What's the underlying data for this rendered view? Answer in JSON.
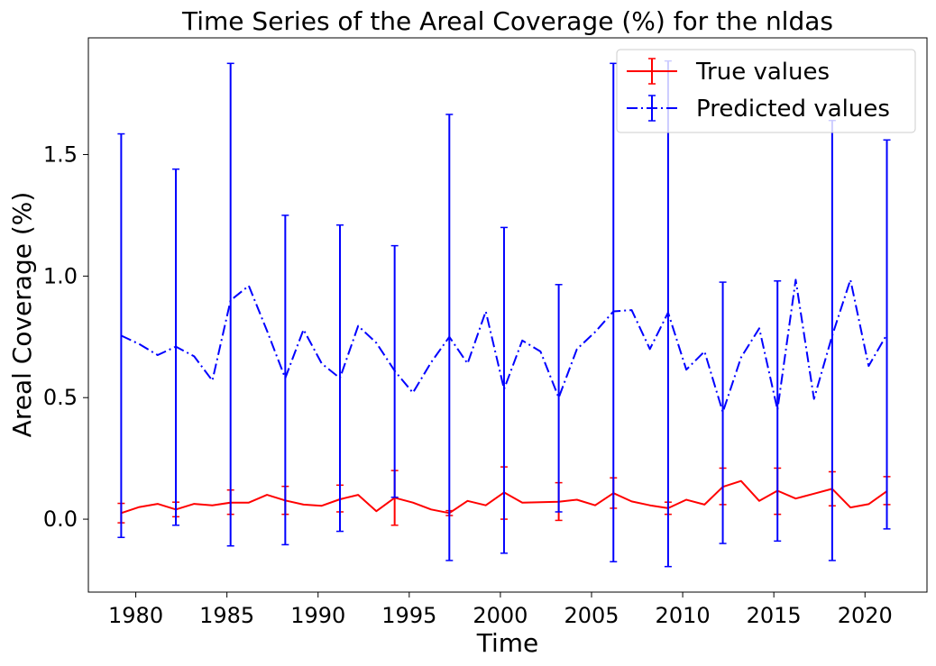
{
  "chart_data": {
    "type": "line",
    "title": "Time Series of the Areal Coverage (%) for the nldas",
    "xlabel": "Time",
    "ylabel": "Areal Coverage (%)",
    "xlim": [
      1977.4,
      2023.4
    ],
    "ylim": [
      -0.3,
      1.98
    ],
    "xticks": [
      1980,
      1985,
      1990,
      1995,
      2000,
      2005,
      2010,
      2015,
      2020
    ],
    "xtick_labels": [
      "1980",
      "1985",
      "1990",
      "1995",
      "2000",
      "2005",
      "2010",
      "2015",
      "2020"
    ],
    "yticks": [
      0.0,
      0.5,
      1.0,
      1.5
    ],
    "ytick_labels": [
      "0.0",
      "0.5",
      "1.0",
      "1.5"
    ],
    "grid": false,
    "legend_position": "top-right",
    "series": [
      {
        "name": "True values",
        "color": "#ff0000",
        "linestyle": "solid",
        "x": [
          1979.2,
          1980.2,
          1981.2,
          1982.2,
          1983.2,
          1984.2,
          1985.2,
          1986.2,
          1987.2,
          1988.2,
          1989.2,
          1990.2,
          1991.2,
          1992.2,
          1993.2,
          1994.2,
          1995.2,
          1996.2,
          1997.2,
          1998.2,
          1999.2,
          2000.2,
          2001.2,
          2002.2,
          2003.2,
          2004.2,
          2005.2,
          2006.2,
          2007.2,
          2008.2,
          2009.2,
          2010.2,
          2011.2,
          2012.2,
          2013.2,
          2014.2,
          2015.2,
          2016.2,
          2017.2,
          2018.2,
          2019.2,
          2020.2,
          2021.2
        ],
        "y": [
          0.025,
          0.05,
          0.063,
          0.04,
          0.063,
          0.057,
          0.068,
          0.068,
          0.1,
          0.077,
          0.06,
          0.055,
          0.082,
          0.1,
          0.033,
          0.088,
          0.068,
          0.04,
          0.025,
          0.075,
          0.057,
          0.11,
          0.068,
          0.07,
          0.072,
          0.08,
          0.057,
          0.107,
          0.073,
          0.057,
          0.045,
          0.08,
          0.06,
          0.133,
          0.157,
          0.075,
          0.117,
          0.085,
          0.105,
          0.125,
          0.048,
          0.062,
          0.115
        ],
        "errorbars": [
          {
            "x": 1979.2,
            "low": -0.015,
            "high": 0.065
          },
          {
            "x": 1982.2,
            "low": 0.01,
            "high": 0.07
          },
          {
            "x": 1985.2,
            "low": 0.02,
            "high": 0.12
          },
          {
            "x": 1988.2,
            "low": 0.02,
            "high": 0.135
          },
          {
            "x": 1991.2,
            "low": 0.03,
            "high": 0.14
          },
          {
            "x": 1994.2,
            "low": -0.025,
            "high": 0.2
          },
          {
            "x": 1997.2,
            "low": 0.015,
            "high": 0.035
          },
          {
            "x": 2000.2,
            "low": 0.0,
            "high": 0.215
          },
          {
            "x": 2003.2,
            "low": -0.005,
            "high": 0.15
          },
          {
            "x": 2006.2,
            "low": 0.045,
            "high": 0.17
          },
          {
            "x": 2009.2,
            "low": 0.02,
            "high": 0.07
          },
          {
            "x": 2012.2,
            "low": 0.06,
            "high": 0.21
          },
          {
            "x": 2015.2,
            "low": 0.02,
            "high": 0.21
          },
          {
            "x": 2018.2,
            "low": 0.055,
            "high": 0.195
          },
          {
            "x": 2021.2,
            "low": 0.06,
            "high": 0.175
          }
        ]
      },
      {
        "name": "Predicted values",
        "color": "#0000ff",
        "linestyle": "dashdot",
        "x": [
          1979.2,
          1980.2,
          1981.2,
          1982.2,
          1983.2,
          1984.2,
          1985.2,
          1986.2,
          1987.2,
          1988.2,
          1989.2,
          1990.2,
          1991.2,
          1992.2,
          1993.2,
          1994.2,
          1995.2,
          1996.2,
          1997.2,
          1998.2,
          1999.2,
          2000.2,
          2001.2,
          2002.2,
          2003.2,
          2004.2,
          2005.2,
          2006.2,
          2007.2,
          2008.2,
          2009.2,
          2010.2,
          2011.2,
          2012.2,
          2013.2,
          2014.2,
          2015.2,
          2016.2,
          2017.2,
          2018.2,
          2019.2,
          2020.2,
          2021.2
        ],
        "y": [
          0.755,
          0.72,
          0.675,
          0.71,
          0.67,
          0.57,
          0.9,
          0.96,
          0.775,
          0.58,
          0.78,
          0.64,
          0.58,
          0.795,
          0.725,
          0.61,
          0.52,
          0.645,
          0.75,
          0.64,
          0.855,
          0.535,
          0.735,
          0.69,
          0.5,
          0.7,
          0.77,
          0.855,
          0.86,
          0.7,
          0.85,
          0.615,
          0.69,
          0.44,
          0.665,
          0.785,
          0.45,
          0.985,
          0.495,
          0.755,
          0.985,
          0.63,
          0.76
        ],
        "errorbars": [
          {
            "x": 1979.2,
            "low": -0.075,
            "high": 1.585
          },
          {
            "x": 1982.2,
            "low": -0.025,
            "high": 1.44
          },
          {
            "x": 1985.2,
            "low": -0.11,
            "high": 1.875
          },
          {
            "x": 1988.2,
            "low": -0.105,
            "high": 1.25
          },
          {
            "x": 1991.2,
            "low": -0.05,
            "high": 1.21
          },
          {
            "x": 1994.2,
            "low": 0.09,
            "high": 1.125
          },
          {
            "x": 1997.2,
            "low": -0.17,
            "high": 1.665
          },
          {
            "x": 2000.2,
            "low": -0.14,
            "high": 1.2
          },
          {
            "x": 2003.2,
            "low": 0.03,
            "high": 0.965
          },
          {
            "x": 2006.2,
            "low": -0.175,
            "high": 1.875
          },
          {
            "x": 2009.2,
            "low": -0.195,
            "high": 1.885
          },
          {
            "x": 2012.2,
            "low": -0.1,
            "high": 0.975
          },
          {
            "x": 2015.2,
            "low": -0.09,
            "high": 0.98
          },
          {
            "x": 2018.2,
            "low": -0.17,
            "high": 1.64
          },
          {
            "x": 2021.2,
            "low": -0.04,
            "high": 1.56
          }
        ]
      }
    ]
  }
}
